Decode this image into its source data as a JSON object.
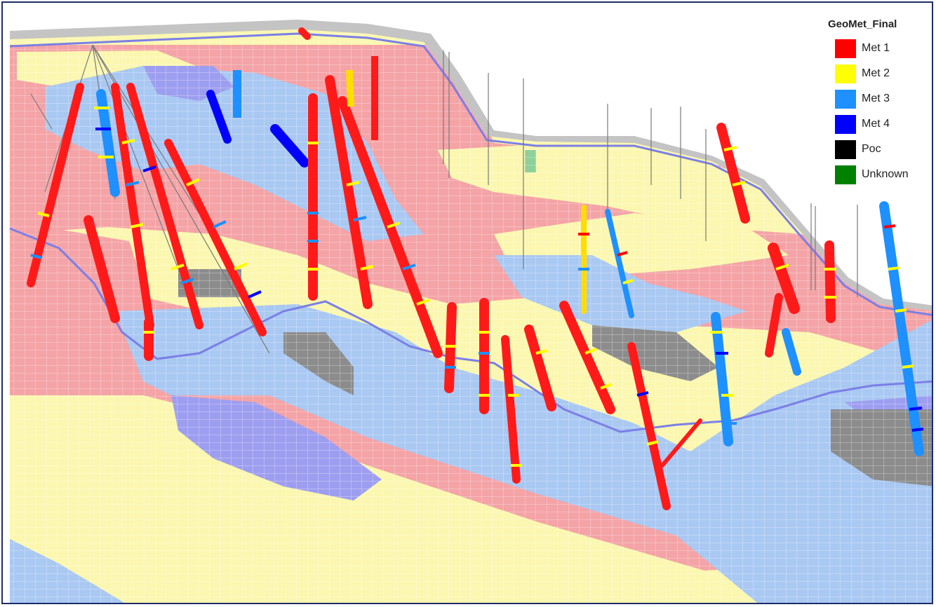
{
  "legend": {
    "title": "GeoMet_Final",
    "items": [
      {
        "label": "Met 1",
        "color": "#ff0000"
      },
      {
        "label": "Met 2",
        "color": "#ffff00"
      },
      {
        "label": "Met 3",
        "color": "#1e90ff"
      },
      {
        "label": "Met 4",
        "color": "#0000ff"
      },
      {
        "label": "Poc",
        "color": "#000000"
      },
      {
        "label": "Unknown",
        "color": "#008000"
      }
    ]
  },
  "block_colors": {
    "met1_block": "#f4a3a6",
    "met2_block": "#fbf7b0",
    "met3_block": "#a9c8f2",
    "met4_block": "#9d9ef0",
    "poc_block": "#8c8c8c",
    "unknown_block": "#8fcf9a",
    "topo_shadow": "#b9b9b9",
    "surface_line": "#7b7fe6"
  }
}
